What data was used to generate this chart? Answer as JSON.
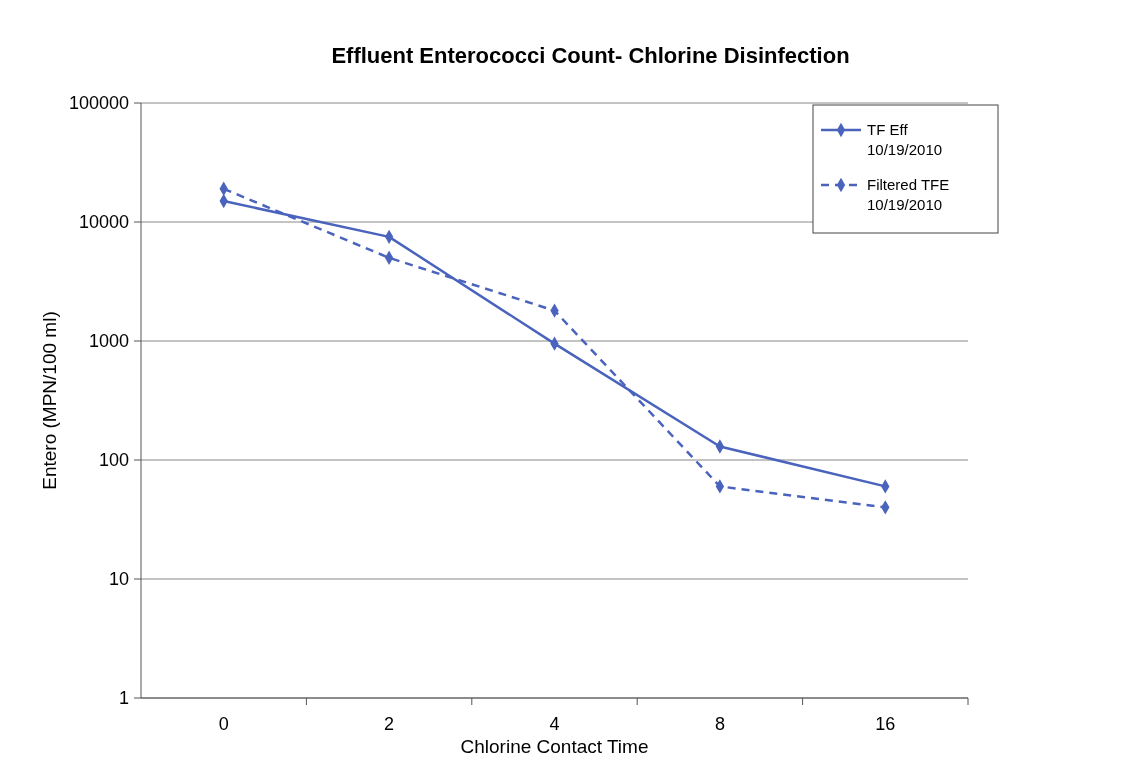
{
  "chart_data": {
    "type": "line",
    "title": "Effluent Enterococci Count- Chlorine Disinfection",
    "xlabel": "Chlorine Contact Time",
    "ylabel": "Entero (MPN/100 ml)",
    "categories": [
      "0",
      "2",
      "4",
      "8",
      "16"
    ],
    "series": [
      {
        "name": "TF Eff 10/19/2010",
        "color": "#4a63bd",
        "line_style": "solid",
        "values": [
          15000,
          7500,
          950,
          130,
          60
        ]
      },
      {
        "name": "Filtered TFE 10/19/2010",
        "color": "#4a63bd",
        "line_style": "dashed",
        "values": [
          19000,
          5000,
          1800,
          60,
          40
        ]
      }
    ],
    "log": true,
    "ylim": [
      1,
      100000
    ],
    "yticks": [
      1,
      10,
      100,
      1000,
      10000,
      100000
    ],
    "grid": "y",
    "legend": "top right",
    "marker": "diamond"
  }
}
